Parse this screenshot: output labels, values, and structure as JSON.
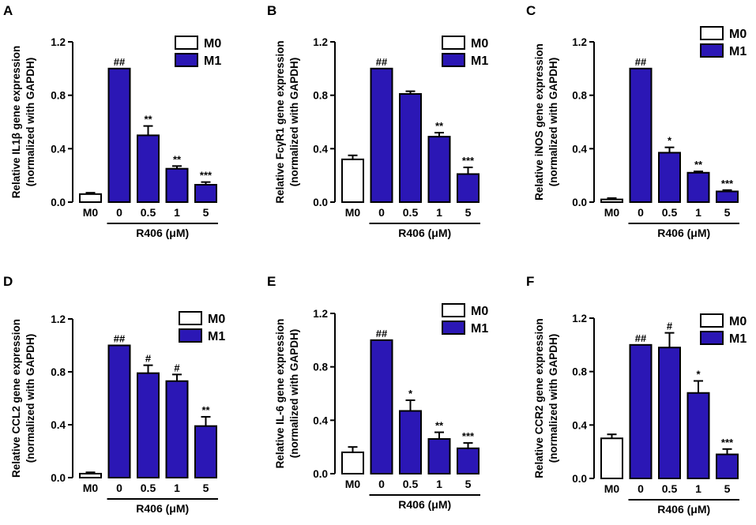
{
  "colors": {
    "m0": "#ffffff",
    "m1": "#2b17b5",
    "stroke": "#000000"
  },
  "x_title": "R406 (μM)",
  "chart_data": [
    {
      "panel": "A",
      "type": "bar",
      "ylabel_line1": "Relative IL1β gene expression",
      "ylabel_line2": "(normalized with GAPDH)",
      "ylim": [
        0,
        1.2
      ],
      "yticks": [
        "0.0",
        "0.4",
        "0.8",
        "1.2"
      ],
      "categories": [
        "M0",
        "0",
        "0.5",
        "1",
        "5"
      ],
      "values": [
        0.06,
        1.0,
        0.5,
        0.25,
        0.13
      ],
      "errors": [
        0.01,
        0,
        0.07,
        0.02,
        0.02
      ],
      "groups": [
        "M0",
        "M1",
        "M1",
        "M1",
        "M1"
      ],
      "annotations": [
        "",
        "##",
        "**",
        "**",
        "***"
      ],
      "legend": [
        "M0",
        "M1"
      ],
      "x_title": "R406 (μM)"
    },
    {
      "panel": "B",
      "type": "bar",
      "ylabel_line1": "Relative FcγR1 gene expression",
      "ylabel_line2": "(normalized with GAPDH)",
      "ylim": [
        0,
        1.2
      ],
      "yticks": [
        "0.0",
        "0.4",
        "0.8",
        "1.2"
      ],
      "categories": [
        "M0",
        "0",
        "0.5",
        "1",
        "5"
      ],
      "values": [
        0.32,
        1.0,
        0.81,
        0.49,
        0.21
      ],
      "errors": [
        0.03,
        0,
        0.02,
        0.03,
        0.05
      ],
      "groups": [
        "M0",
        "M1",
        "M1",
        "M1",
        "M1"
      ],
      "annotations": [
        "",
        "##",
        "",
        "**",
        "***"
      ],
      "legend": [
        "M0",
        "M1"
      ],
      "x_title": "R406 (μM)"
    },
    {
      "panel": "C",
      "type": "bar",
      "ylabel_line1": "Relative iNOS gene expression",
      "ylabel_line2": "(normalized with GAPDH)",
      "ylim": [
        0,
        1.2
      ],
      "yticks": [
        "0.0",
        "0.4",
        "0.8",
        "1.2"
      ],
      "categories": [
        "M0",
        "0",
        "0.5",
        "1",
        "5"
      ],
      "values": [
        0.02,
        1.0,
        0.37,
        0.22,
        0.08
      ],
      "errors": [
        0.01,
        0,
        0.04,
        0.01,
        0.01
      ],
      "groups": [
        "M0",
        "M1",
        "M1",
        "M1",
        "M1"
      ],
      "annotations": [
        "",
        "##",
        "*",
        "**",
        "***"
      ],
      "legend": [
        "M0",
        "M1"
      ],
      "x_title": "R406 (μM)"
    },
    {
      "panel": "D",
      "type": "bar",
      "ylabel_line1": "Relative CCL2 gene expression",
      "ylabel_line2": "(normalized with GAPDH)",
      "ylim": [
        0,
        1.2
      ],
      "yticks": [
        "0.0",
        "0.4",
        "0.8",
        "1.2"
      ],
      "categories": [
        "M0",
        "0",
        "0.5",
        "1",
        "5"
      ],
      "values": [
        0.03,
        1.0,
        0.79,
        0.73,
        0.39
      ],
      "errors": [
        0.01,
        0,
        0.06,
        0.05,
        0.07
      ],
      "groups": [
        "M0",
        "M1",
        "M1",
        "M1",
        "M1"
      ],
      "annotations": [
        "",
        "##",
        "#",
        "#",
        "**"
      ],
      "legend": [
        "M0",
        "M1"
      ],
      "x_title": "R406 (μM)"
    },
    {
      "panel": "E",
      "type": "bar",
      "ylabel_line1": "Relative IL-6 gene expression",
      "ylabel_line2": "(normalized with GAPDH)",
      "ylim": [
        0,
        1.2
      ],
      "yticks": [
        "0.0",
        "0.4",
        "0.8",
        "1.2"
      ],
      "categories": [
        "M0",
        "0",
        "0.5",
        "1",
        "5"
      ],
      "values": [
        0.16,
        1.0,
        0.47,
        0.26,
        0.19
      ],
      "errors": [
        0.04,
        0,
        0.08,
        0.05,
        0.04
      ],
      "groups": [
        "M0",
        "M1",
        "M1",
        "M1",
        "M1"
      ],
      "annotations": [
        "",
        "##",
        "*",
        "**",
        "***"
      ],
      "legend": [
        "M0",
        "M1"
      ],
      "x_title": "R406 (μM)"
    },
    {
      "panel": "F",
      "type": "bar",
      "ylabel_line1": "Relative CCR2 gene expression",
      "ylabel_line2": "(normalized with GAPDH)",
      "ylim": [
        0,
        1.2
      ],
      "yticks": [
        "0.0",
        "0.4",
        "0.8",
        "1.2"
      ],
      "categories": [
        "M0",
        "0",
        "0.5",
        "1",
        "5"
      ],
      "values": [
        0.3,
        1.0,
        0.98,
        0.64,
        0.18
      ],
      "errors": [
        0.03,
        0,
        0.11,
        0.09,
        0.04
      ],
      "groups": [
        "M0",
        "M1",
        "M1",
        "M1",
        "M1"
      ],
      "annotations": [
        "",
        "##",
        "#",
        "*",
        "***"
      ],
      "legend": [
        "M0",
        "M1"
      ],
      "x_title": "R406 (μM)"
    }
  ]
}
